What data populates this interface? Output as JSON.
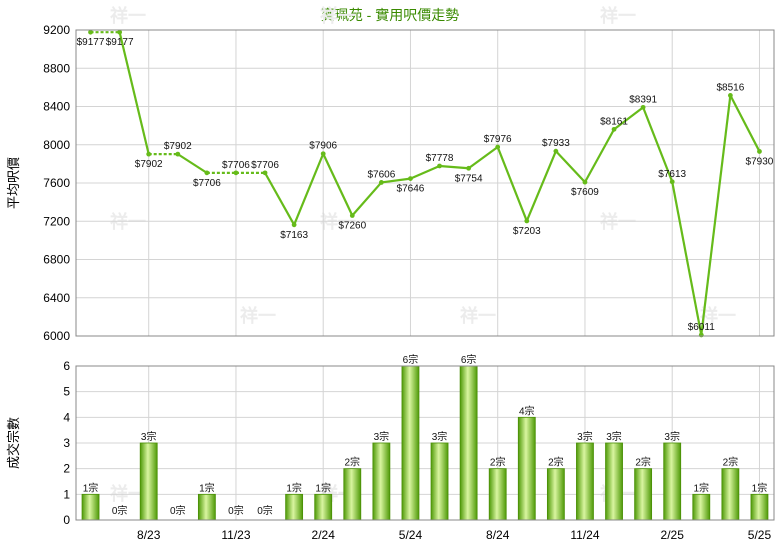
{
  "chart_data": [
    {
      "type": "line",
      "title": "寶珮苑 - 實用呎價走勢",
      "ylabel": "平均呎價",
      "ylim": [
        6000,
        9200
      ],
      "yticks": [
        6000,
        6400,
        6800,
        7200,
        7600,
        8000,
        8400,
        8800,
        9200
      ],
      "x_labels": [
        "8/23",
        "11/23",
        "2/24",
        "5/24",
        "8/24",
        "11/24",
        "2/25",
        "5/25"
      ],
      "x_label_index": [
        2,
        5,
        8,
        11,
        14,
        17,
        20,
        23
      ],
      "values": [
        9177,
        9177,
        7902,
        7902,
        7706,
        7706,
        7706,
        7163,
        7906,
        7260,
        7606,
        7646,
        7778,
        7754,
        7976,
        7203,
        7933,
        7609,
        8161,
        8391,
        7613,
        6011,
        8516,
        7930
      ],
      "point_labels": [
        "$9177",
        "$9177",
        "$7902",
        "$7902",
        "$7706",
        "$7706",
        "$7706",
        "$7163",
        "$7906",
        "$7260",
        "$7606",
        "$7646",
        "$7778",
        "$7754",
        "$7976",
        "$7203",
        "$7933",
        "$7609",
        "$8161",
        "$8391",
        "$7613",
        "$6011",
        "$8516",
        "$7930"
      ],
      "no_transaction": [
        false,
        true,
        false,
        true,
        false,
        true,
        true,
        false,
        false,
        false,
        false,
        false,
        false,
        false,
        false,
        false,
        false,
        false,
        false,
        false,
        false,
        false,
        false,
        false
      ],
      "color": "#66bb1a"
    },
    {
      "type": "bar",
      "ylabel": "成交宗數",
      "ylim": [
        0,
        6
      ],
      "yticks": [
        0,
        1,
        2,
        3,
        4,
        5,
        6
      ],
      "values": [
        1,
        0,
        3,
        0,
        1,
        0,
        0,
        1,
        1,
        2,
        3,
        6,
        3,
        6,
        2,
        4,
        2,
        3,
        3,
        2,
        3,
        1,
        2,
        1
      ],
      "labels": [
        "1宗",
        "0宗",
        "3宗",
        "0宗",
        "1宗",
        "0宗",
        "0宗",
        "1宗",
        "1宗",
        "2宗",
        "3宗",
        "6宗",
        "3宗",
        "6宗",
        "2宗",
        "4宗",
        "2宗",
        "3宗",
        "3宗",
        "2宗",
        "3宗",
        "1宗",
        "2宗",
        "1宗"
      ],
      "x_labels": [
        "8/23",
        "11/23",
        "2/24",
        "5/24",
        "8/24",
        "11/24",
        "2/25",
        "5/25"
      ],
      "x_label_index": [
        2,
        5,
        8,
        11,
        14,
        17,
        20,
        23
      ],
      "color": "#5aa80f"
    }
  ],
  "watermark": "祥一"
}
